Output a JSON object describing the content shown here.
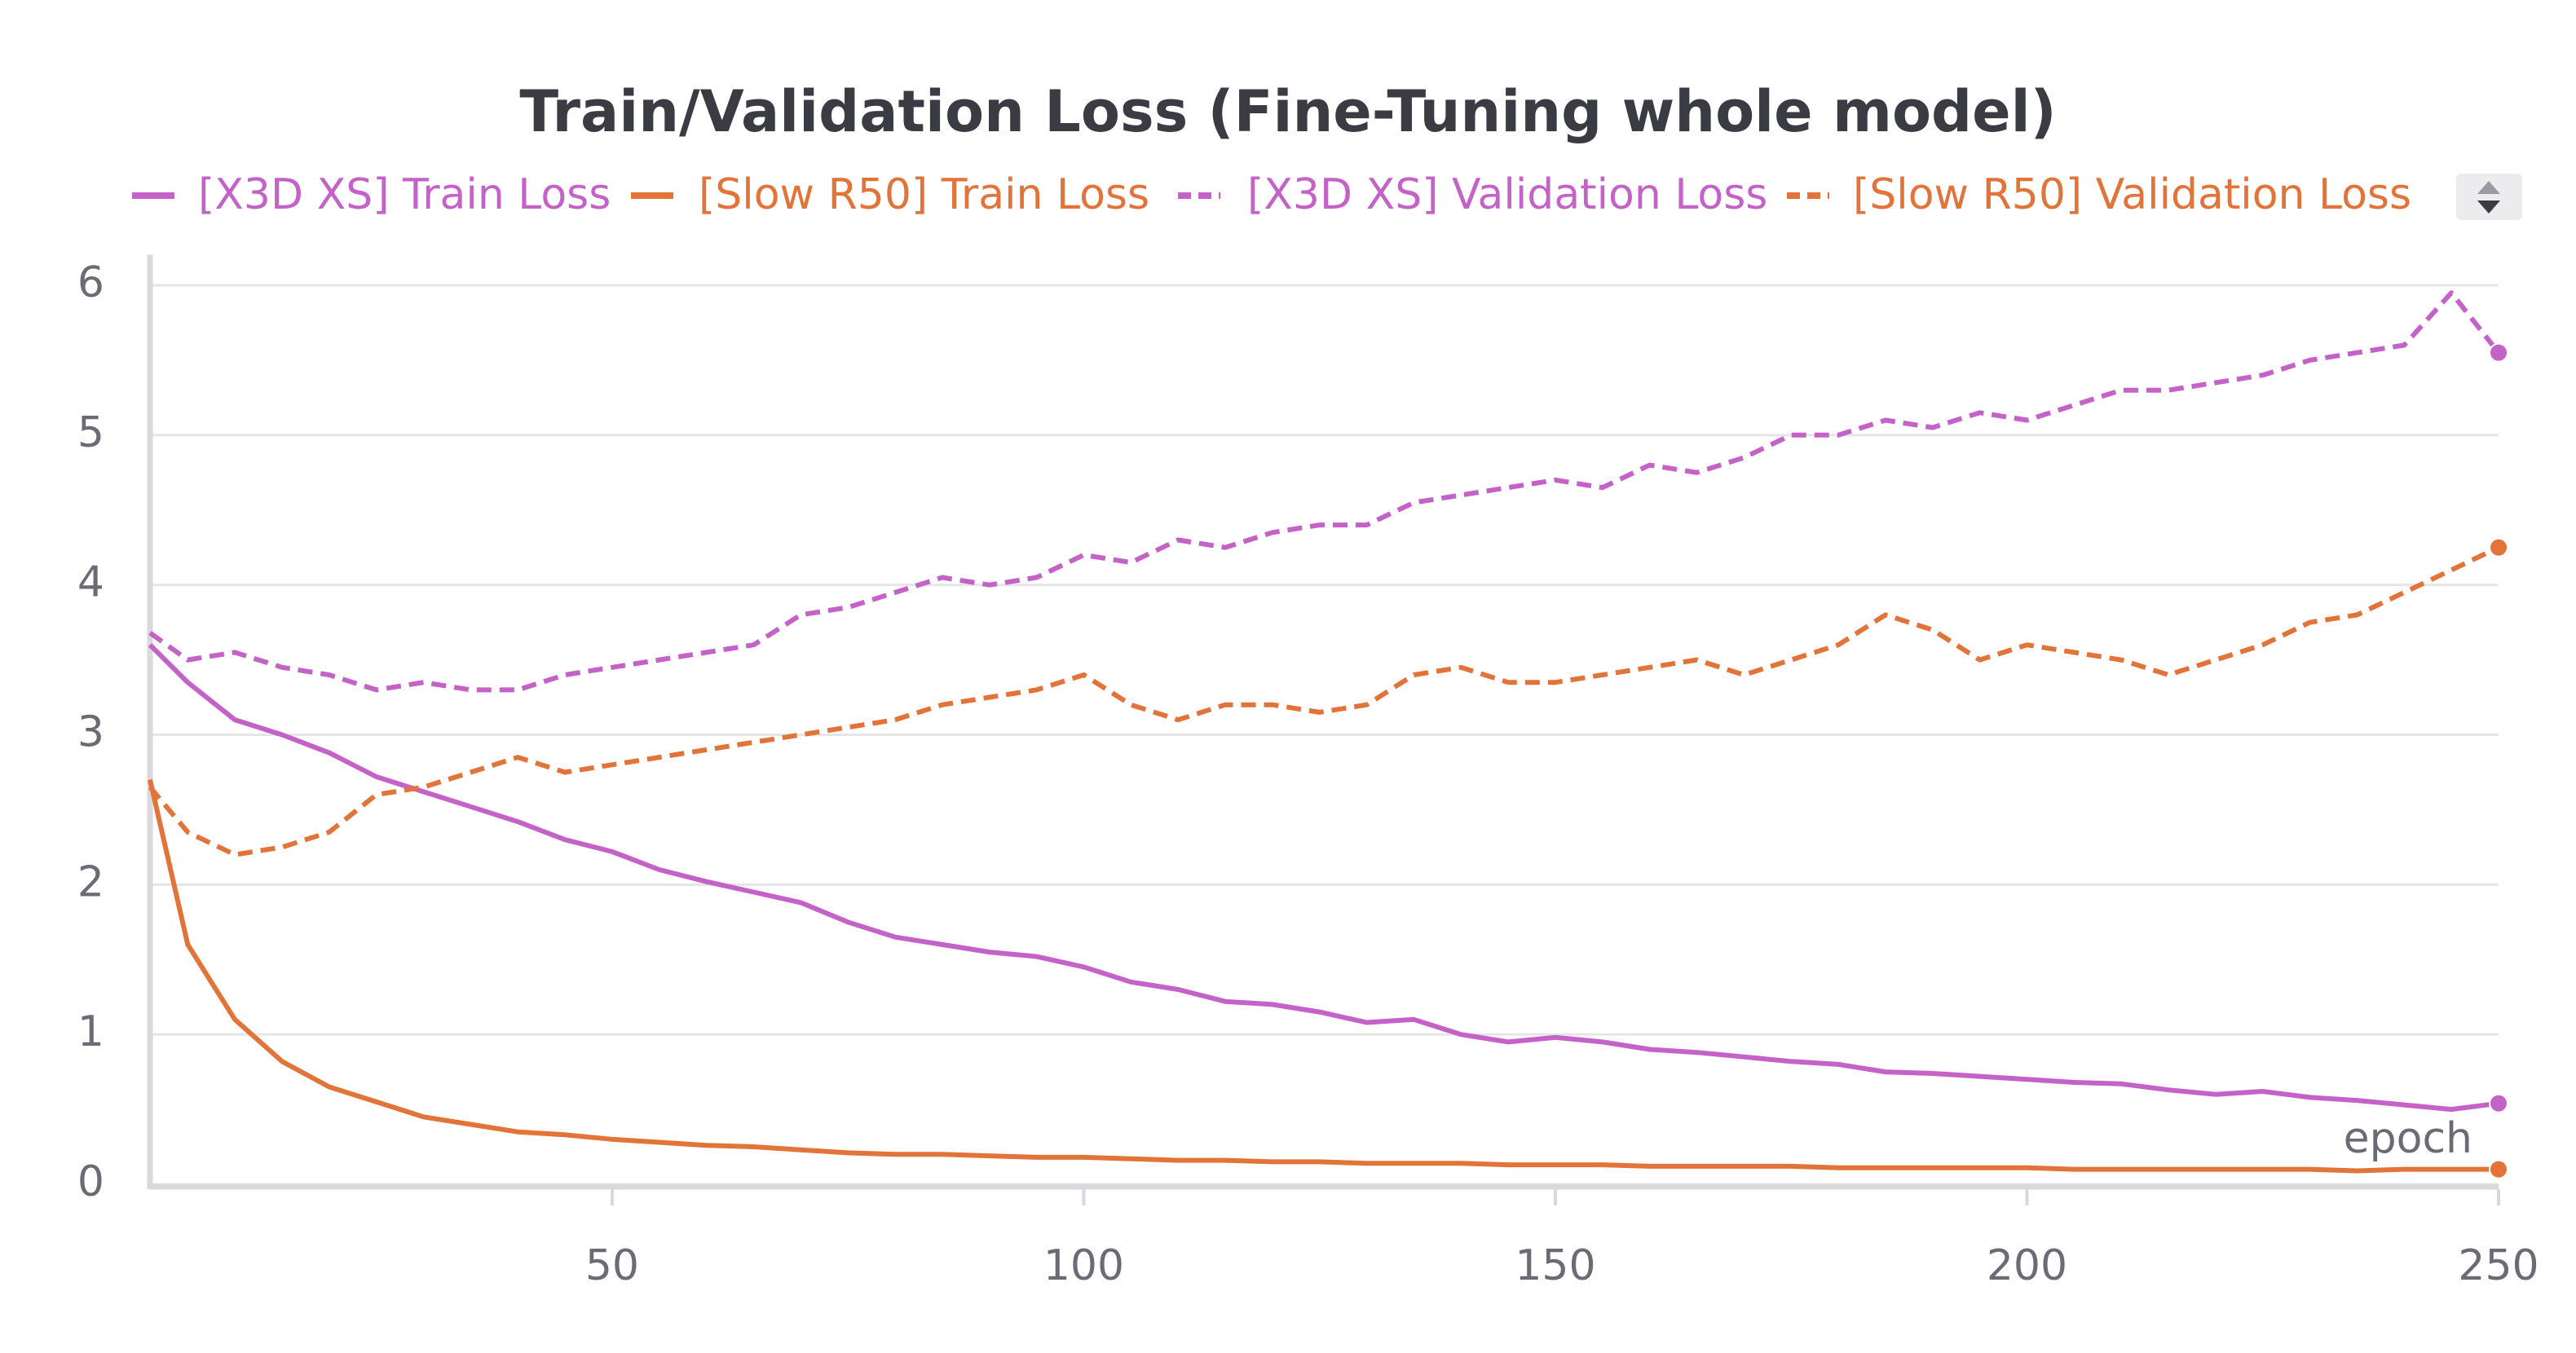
{
  "chart_data": {
    "type": "line",
    "title": "Train/Validation Loss (Fine-Tuning whole model)",
    "x_label": "epoch",
    "legend": "top",
    "grid": true,
    "xlim": [
      1,
      250
    ],
    "xticks": [
      50,
      100,
      150,
      200,
      250
    ],
    "ylim": [
      0,
      6.15
    ],
    "yticks": [
      0,
      1,
      2,
      3,
      4,
      5,
      6
    ],
    "x": [
      1,
      5,
      10,
      15,
      20,
      25,
      30,
      35,
      40,
      45,
      50,
      55,
      60,
      65,
      70,
      75,
      80,
      85,
      90,
      95,
      100,
      105,
      110,
      115,
      120,
      125,
      130,
      135,
      140,
      145,
      150,
      155,
      160,
      165,
      170,
      175,
      180,
      185,
      190,
      195,
      200,
      205,
      210,
      215,
      220,
      225,
      230,
      235,
      240,
      245,
      250
    ],
    "series": [
      {
        "name": "[X3D XS] Train Loss",
        "color": "#c462c8",
        "dash": false,
        "values": [
          3.6,
          3.35,
          3.1,
          3.0,
          2.88,
          2.72,
          2.62,
          2.52,
          2.42,
          2.3,
          2.22,
          2.1,
          2.02,
          1.95,
          1.88,
          1.75,
          1.65,
          1.6,
          1.55,
          1.52,
          1.45,
          1.35,
          1.3,
          1.22,
          1.2,
          1.15,
          1.08,
          1.1,
          1.0,
          0.95,
          0.98,
          0.95,
          0.9,
          0.88,
          0.85,
          0.82,
          0.8,
          0.75,
          0.74,
          0.72,
          0.7,
          0.68,
          0.67,
          0.63,
          0.6,
          0.62,
          0.58,
          0.56,
          0.53,
          0.5,
          0.54
        ]
      },
      {
        "name": "[Slow R50] Train Loss",
        "color": "#e2743a",
        "dash": false,
        "values": [
          2.7,
          1.6,
          1.1,
          0.82,
          0.65,
          0.55,
          0.45,
          0.4,
          0.35,
          0.33,
          0.3,
          0.28,
          0.26,
          0.25,
          0.23,
          0.21,
          0.2,
          0.2,
          0.19,
          0.18,
          0.18,
          0.17,
          0.16,
          0.16,
          0.15,
          0.15,
          0.14,
          0.14,
          0.14,
          0.13,
          0.13,
          0.13,
          0.12,
          0.12,
          0.12,
          0.12,
          0.11,
          0.11,
          0.11,
          0.11,
          0.11,
          0.1,
          0.1,
          0.1,
          0.1,
          0.1,
          0.1,
          0.09,
          0.1,
          0.1,
          0.1
        ]
      },
      {
        "name": "[X3D XS] Validation Loss",
        "color": "#c462c8",
        "dash": true,
        "values": [
          3.68,
          3.5,
          3.55,
          3.45,
          3.4,
          3.3,
          3.35,
          3.3,
          3.3,
          3.4,
          3.45,
          3.5,
          3.55,
          3.6,
          3.8,
          3.85,
          3.95,
          4.05,
          4.0,
          4.05,
          4.2,
          4.15,
          4.3,
          4.25,
          4.35,
          4.4,
          4.4,
          4.55,
          4.6,
          4.65,
          4.7,
          4.65,
          4.8,
          4.75,
          4.85,
          5.0,
          5.0,
          5.1,
          5.05,
          5.15,
          5.1,
          5.2,
          5.3,
          5.3,
          5.35,
          5.4,
          5.5,
          5.55,
          5.6,
          5.95,
          5.55
        ]
      },
      {
        "name": "[Slow R50] Validation Loss",
        "color": "#e2743a",
        "dash": true,
        "values": [
          2.65,
          2.35,
          2.2,
          2.25,
          2.35,
          2.6,
          2.65,
          2.75,
          2.85,
          2.75,
          2.8,
          2.85,
          2.9,
          2.95,
          3.0,
          3.05,
          3.1,
          3.2,
          3.25,
          3.3,
          3.4,
          3.2,
          3.1,
          3.2,
          3.2,
          3.15,
          3.2,
          3.4,
          3.45,
          3.35,
          3.35,
          3.4,
          3.45,
          3.5,
          3.4,
          3.5,
          3.6,
          3.8,
          3.7,
          3.5,
          3.6,
          3.55,
          3.5,
          3.4,
          3.5,
          3.6,
          3.75,
          3.8,
          3.95,
          4.1,
          4.25
        ]
      }
    ]
  }
}
